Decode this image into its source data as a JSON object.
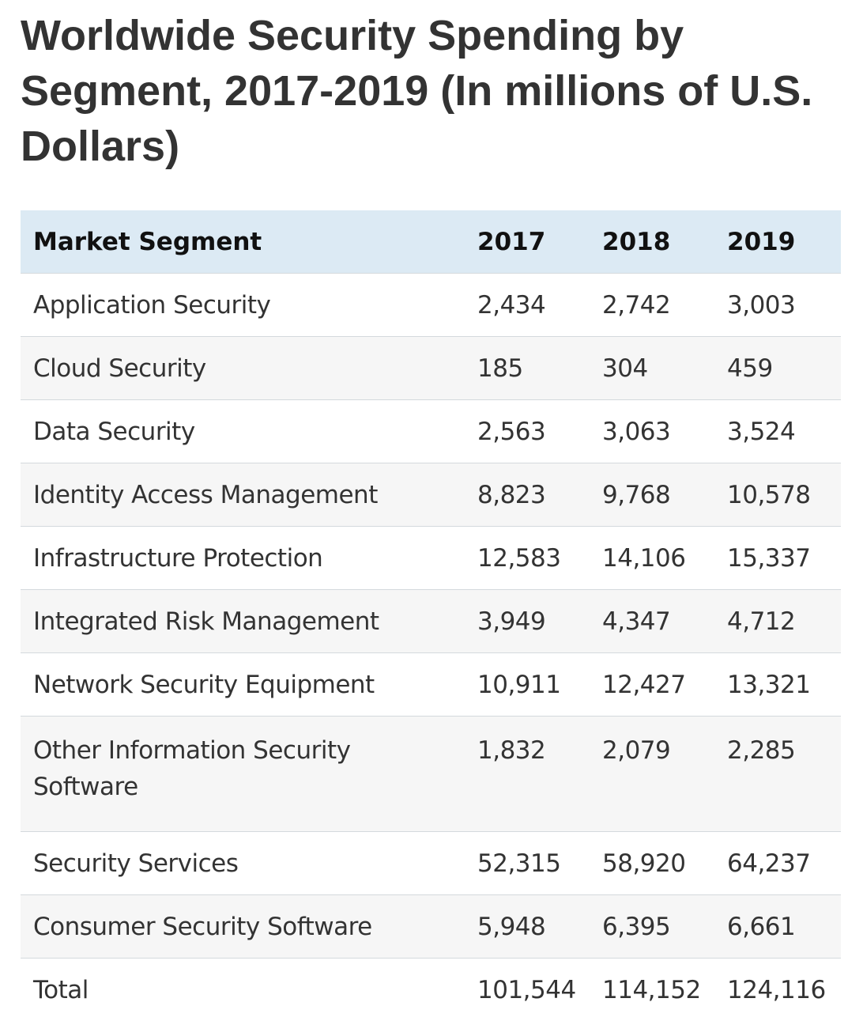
{
  "title": "Worldwide Security Spending by Segment, 2017-2019 (In millions of U.S. Dollars)",
  "table": {
    "headers": [
      "Market Segment",
      "2017",
      "2018",
      "2019"
    ],
    "rows": [
      {
        "segment": "Application Security",
        "y2017": "2,434",
        "y2018": "2,742",
        "y2019": "3,003"
      },
      {
        "segment": "Cloud Security",
        "y2017": "185",
        "y2018": "304",
        "y2019": "459"
      },
      {
        "segment": "Data Security",
        "y2017": "2,563",
        "y2018": "3,063",
        "y2019": "3,524"
      },
      {
        "segment": "Identity Access Management",
        "y2017": "8,823",
        "y2018": "9,768",
        "y2019": "10,578"
      },
      {
        "segment": "Infrastructure Protection",
        "y2017": "12,583",
        "y2018": "14,106",
        "y2019": "15,337"
      },
      {
        "segment": "Integrated Risk Management",
        "y2017": "3,949",
        "y2018": "4,347",
        "y2019": "4,712"
      },
      {
        "segment": "Network Security Equipment",
        "y2017": "10,911",
        "y2018": "12,427",
        "y2019": "13,321"
      },
      {
        "segment": "Other Information Security Software",
        "y2017": "1,832",
        "y2018": "2,079",
        "y2019": "2,285"
      },
      {
        "segment": "Security Services",
        "y2017": "52,315",
        "y2018": "58,920",
        "y2019": "64,237"
      },
      {
        "segment": "Consumer Security Software",
        "y2017": "5,948",
        "y2018": "6,395",
        "y2019": "6,661"
      },
      {
        "segment": "Total",
        "y2017": "101,544",
        "y2018": "114,152",
        "y2019": "124,116"
      }
    ]
  },
  "colors": {
    "header_background": "#dceaf4",
    "row_stripe": "#f6f6f6",
    "title_text": "#333333"
  }
}
